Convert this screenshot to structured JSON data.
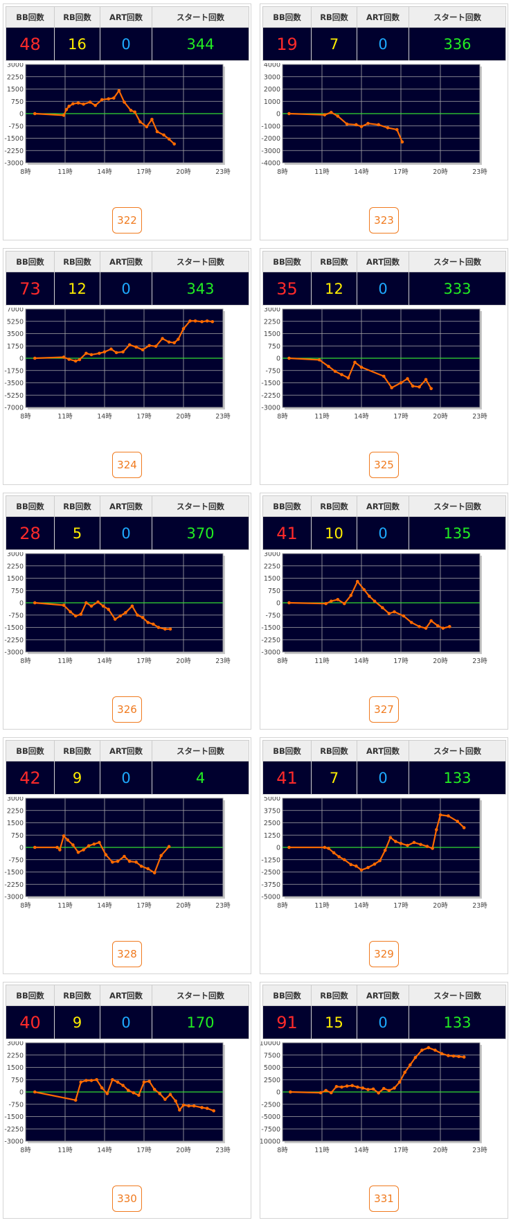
{
  "headers": [
    "BB回数",
    "RB回数",
    "ART回数",
    "スタート回数"
  ],
  "x_ticks": [
    "8時",
    "11時",
    "14時",
    "17時",
    "20時",
    "23時"
  ],
  "colors": {
    "bb": "#ff2a2a",
    "rb": "#ffee00",
    "art": "#1eaaff",
    "start": "#22ee22",
    "line": "#ff6a00",
    "zero": "#33dd33",
    "plot_bg": "#00002e",
    "button": "#f07a1e"
  },
  "machines": [
    {
      "number": "322",
      "bb": "48",
      "rb": "16",
      "art": "0",
      "start": "344",
      "chart_data": {
        "type": "line",
        "x_range": [
          8,
          23
        ],
        "ylim": [
          -3000,
          3000
        ],
        "yticks": [
          "3000",
          "2250",
          "1500",
          "750",
          "0",
          "-750",
          "-1500",
          "-2250",
          "-3000"
        ],
        "x": [
          8.7,
          10.9,
          11.1,
          11.3,
          11.6,
          12.0,
          12.4,
          12.9,
          13.3,
          13.8,
          14.3,
          14.7,
          15.1,
          15.5,
          16.0,
          16.3,
          16.7,
          17.2,
          17.6,
          18.0,
          18.5,
          18.9,
          19.3
        ],
        "y": [
          0,
          -100,
          250,
          450,
          600,
          650,
          580,
          700,
          500,
          850,
          900,
          950,
          1400,
          700,
          200,
          100,
          -500,
          -800,
          -350,
          -1100,
          -1300,
          -1550,
          -1850
        ]
      }
    },
    {
      "number": "323",
      "bb": "19",
      "rb": "7",
      "art": "0",
      "start": "336",
      "chart_data": {
        "type": "line",
        "x_range": [
          8,
          23
        ],
        "ylim": [
          -4000,
          4000
        ],
        "yticks": [
          "4000",
          "3000",
          "2000",
          "1000",
          "0",
          "-1000",
          "-2000",
          "-3000",
          "-4000"
        ],
        "x": [
          8.5,
          11.2,
          11.7,
          12.2,
          12.9,
          13.6,
          14.0,
          14.5,
          15.3,
          16.0,
          16.7,
          17.1
        ],
        "y": [
          0,
          -100,
          100,
          -200,
          -850,
          -900,
          -1050,
          -800,
          -900,
          -1150,
          -1300,
          -2300
        ]
      }
    },
    {
      "number": "324",
      "bb": "73",
      "rb": "12",
      "art": "0",
      "start": "343",
      "chart_data": {
        "type": "line",
        "x_range": [
          8,
          23
        ],
        "ylim": [
          -7000,
          7000
        ],
        "yticks": [
          "7000",
          "5250",
          "3500",
          "1750",
          "0",
          "-1750",
          "-3500",
          "-5250",
          "-7000"
        ],
        "x": [
          8.7,
          10.9,
          11.3,
          11.8,
          12.1,
          12.6,
          13.0,
          13.6,
          14.0,
          14.5,
          14.9,
          15.4,
          15.9,
          16.4,
          16.9,
          17.4,
          17.9,
          18.4,
          18.9,
          19.3,
          19.6,
          20.0,
          20.5,
          20.9,
          21.4,
          21.8,
          22.2
        ],
        "y": [
          0,
          150,
          -150,
          -400,
          -200,
          700,
          500,
          700,
          900,
          1300,
          800,
          900,
          1900,
          1600,
          1200,
          1800,
          1700,
          2800,
          2300,
          2200,
          2700,
          4200,
          5300,
          5300,
          5200,
          5300,
          5200
        ]
      }
    },
    {
      "number": "325",
      "bb": "35",
      "rb": "12",
      "art": "0",
      "start": "333",
      "chart_data": {
        "type": "line",
        "x_range": [
          8,
          23
        ],
        "ylim": [
          -3000,
          3000
        ],
        "yticks": [
          "3000",
          "2250",
          "1500",
          "750",
          "0",
          "-750",
          "-1500",
          "-2250",
          "-3000"
        ],
        "x": [
          8.5,
          10.8,
          11.5,
          12.0,
          12.5,
          13.0,
          13.5,
          14.0,
          15.7,
          16.3,
          17.0,
          17.5,
          17.9,
          18.4,
          18.9,
          19.3
        ],
        "y": [
          0,
          -100,
          -500,
          -800,
          -1000,
          -1200,
          -250,
          -550,
          -1100,
          -1800,
          -1500,
          -1250,
          -1700,
          -1750,
          -1300,
          -1850
        ]
      }
    },
    {
      "number": "326",
      "bb": "28",
      "rb": "5",
      "art": "0",
      "start": "370",
      "chart_data": {
        "type": "line",
        "x_range": [
          8,
          23
        ],
        "ylim": [
          -3000,
          3000
        ],
        "yticks": [
          "3000",
          "2250",
          "1500",
          "750",
          "0",
          "-750",
          "-1500",
          "-2250",
          "-3000"
        ],
        "x": [
          8.7,
          10.9,
          11.4,
          11.8,
          12.2,
          12.6,
          13.0,
          13.5,
          13.9,
          14.3,
          14.8,
          15.2,
          15.6,
          16.1,
          16.5,
          16.9,
          17.3,
          17.7,
          18.1,
          18.6,
          19.0
        ],
        "y": [
          0,
          -150,
          -550,
          -800,
          -700,
          0,
          -200,
          50,
          -200,
          -400,
          -1000,
          -800,
          -600,
          -200,
          -750,
          -900,
          -1200,
          -1300,
          -1500,
          -1600,
          -1600
        ]
      }
    },
    {
      "number": "327",
      "bb": "41",
      "rb": "10",
      "art": "0",
      "start": "135",
      "chart_data": {
        "type": "line",
        "x_range": [
          8,
          23
        ],
        "ylim": [
          -3000,
          3000
        ],
        "yticks": [
          "3000",
          "2250",
          "1500",
          "750",
          "0",
          "-750",
          "-1500",
          "-2250",
          "-3000"
        ],
        "x": [
          8.5,
          11.3,
          11.7,
          12.2,
          12.7,
          13.2,
          13.7,
          14.2,
          14.6,
          15.0,
          15.6,
          16.1,
          16.5,
          17.2,
          17.8,
          18.4,
          18.9,
          19.3,
          19.8,
          20.2,
          20.7
        ],
        "y": [
          0,
          -50,
          100,
          200,
          -50,
          450,
          1300,
          800,
          400,
          100,
          -300,
          -650,
          -550,
          -800,
          -1200,
          -1450,
          -1550,
          -1100,
          -1400,
          -1550,
          -1450
        ]
      }
    },
    {
      "number": "328",
      "bb": "42",
      "rb": "9",
      "art": "0",
      "start": "4",
      "chart_data": {
        "type": "line",
        "x_range": [
          8,
          23
        ],
        "ylim": [
          -3000,
          3000
        ],
        "yticks": [
          "3000",
          "2250",
          "1500",
          "750",
          "0",
          "-750",
          "-1500",
          "-2250",
          "-3000"
        ],
        "x": [
          8.7,
          10.4,
          10.6,
          10.9,
          11.2,
          11.6,
          12.0,
          12.4,
          12.8,
          13.2,
          13.6,
          14.1,
          14.6,
          15.0,
          15.5,
          15.9,
          16.4,
          16.8,
          17.3,
          17.8,
          18.3,
          18.9
        ],
        "y": [
          0,
          0,
          -150,
          700,
          450,
          150,
          -300,
          -150,
          100,
          200,
          300,
          -450,
          -900,
          -850,
          -550,
          -850,
          -900,
          -1150,
          -1300,
          -1550,
          -500,
          50
        ]
      }
    },
    {
      "number": "329",
      "bb": "41",
      "rb": "7",
      "art": "0",
      "start": "133",
      "chart_data": {
        "type": "line",
        "x_range": [
          8,
          23
        ],
        "ylim": [
          -5000,
          5000
        ],
        "yticks": [
          "5000",
          "3750",
          "2500",
          "1250",
          "0",
          "-1250",
          "-2500",
          "-3750",
          "-5000"
        ],
        "x": [
          8.5,
          11.2,
          11.5,
          11.9,
          12.3,
          12.7,
          13.2,
          13.6,
          14.0,
          14.5,
          15.0,
          15.4,
          15.8,
          16.2,
          16.6,
          17.0,
          17.5,
          18.0,
          18.5,
          19.0,
          19.4,
          19.7,
          20.0,
          20.6,
          21.3,
          21.8
        ],
        "y": [
          0,
          0,
          -100,
          -550,
          -950,
          -1250,
          -1750,
          -1900,
          -2300,
          -2050,
          -1700,
          -1350,
          -300,
          1000,
          600,
          400,
          200,
          500,
          300,
          100,
          -100,
          1800,
          3300,
          3200,
          2650,
          2000
        ]
      }
    },
    {
      "number": "330",
      "bb": "40",
      "rb": "9",
      "art": "0",
      "start": "170",
      "chart_data": {
        "type": "line",
        "x_range": [
          8,
          23
        ],
        "ylim": [
          -3000,
          3000
        ],
        "yticks": [
          "3000",
          "2250",
          "1500",
          "750",
          "0",
          "-750",
          "-1500",
          "-2250",
          "-3000"
        ],
        "x": [
          8.7,
          11.8,
          12.2,
          12.6,
          13.0,
          13.4,
          13.8,
          14.2,
          14.6,
          15.0,
          15.4,
          15.8,
          16.2,
          16.6,
          17.0,
          17.4,
          17.8,
          18.2,
          18.6,
          19.0,
          19.4,
          19.7,
          20.0,
          20.4,
          20.8,
          21.4,
          21.8,
          22.3
        ],
        "y": [
          0,
          -500,
          600,
          700,
          700,
          750,
          250,
          -100,
          750,
          600,
          400,
          100,
          -50,
          -200,
          600,
          650,
          150,
          -100,
          -450,
          -150,
          -550,
          -1100,
          -800,
          -850,
          -850,
          -950,
          -1000,
          -1150
        ]
      }
    },
    {
      "number": "331",
      "bb": "91",
      "rb": "15",
      "art": "0",
      "start": "133",
      "chart_data": {
        "type": "line",
        "x_range": [
          8,
          23
        ],
        "ylim": [
          -10000,
          10000
        ],
        "yticks": [
          "10000",
          "7500",
          "5000",
          "2500",
          "0",
          "-2500",
          "-5000",
          "-7500",
          "-10000"
        ],
        "x": [
          8.6,
          10.9,
          11.3,
          11.7,
          12.1,
          12.5,
          12.9,
          13.3,
          13.7,
          14.1,
          14.5,
          14.9,
          15.3,
          15.7,
          16.1,
          16.5,
          16.9,
          17.3,
          17.7,
          18.1,
          18.6,
          19.1,
          19.6,
          20.1,
          20.6,
          21.0,
          21.4,
          21.8
        ],
        "y": [
          0,
          -150,
          300,
          -150,
          1100,
          1000,
          1200,
          1300,
          1000,
          800,
          500,
          600,
          -200,
          700,
          300,
          800,
          2000,
          4000,
          5500,
          7000,
          8500,
          9000,
          8500,
          7800,
          7400,
          7300,
          7200,
          7100
        ]
      }
    }
  ]
}
